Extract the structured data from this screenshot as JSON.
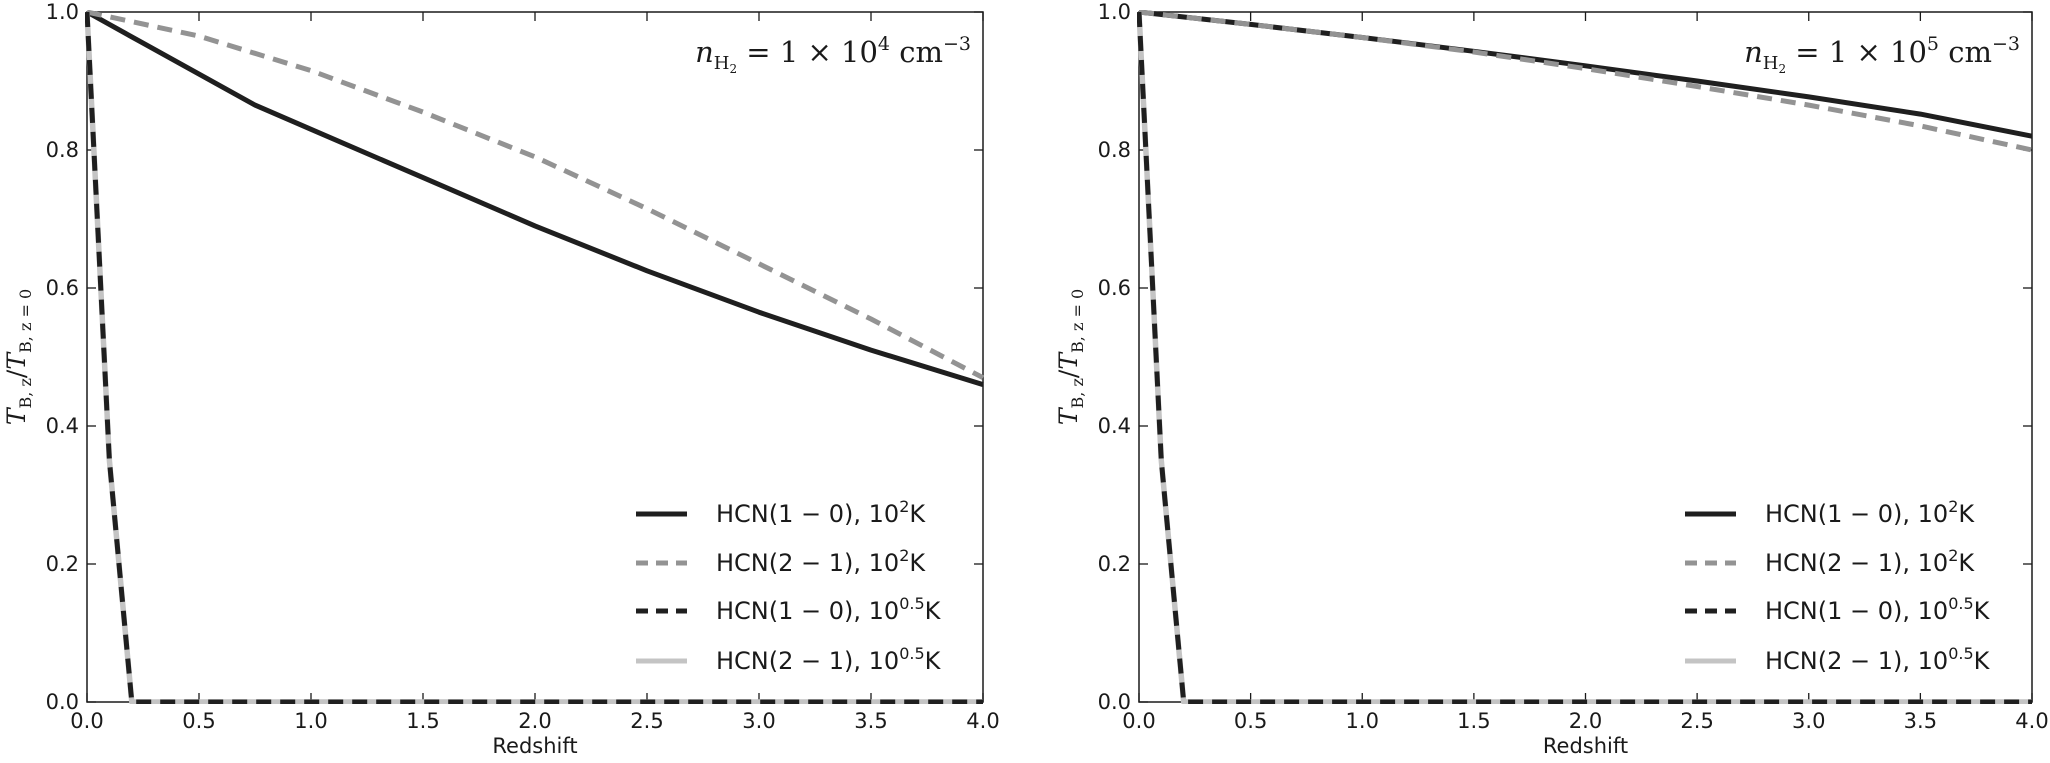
{
  "chart_data": [
    {
      "type": "line",
      "annotation": {
        "prefix": "n",
        "subscript": "H",
        "subscript2": "2",
        "body": " = 1 × 10",
        "exponent": "4",
        "unit": " cm",
        "unit_exponent": "−3"
      },
      "xlabel": "Redshift",
      "ylabel": {
        "t1": "T",
        "s1": "B, z",
        "slash": "/",
        "t2": "T",
        "s2": "B, z = 0"
      },
      "xlim": [
        0,
        4
      ],
      "ylim": [
        0,
        1
      ],
      "xticks": [
        0,
        0.5,
        1.0,
        1.5,
        2.0,
        2.5,
        3.0,
        3.5,
        4.0
      ],
      "xtick_labels": [
        "0.0",
        "0.5",
        "1.0",
        "1.5",
        "2.0",
        "2.5",
        "3.0",
        "3.5",
        "4.0"
      ],
      "yticks": [
        0,
        0.2,
        0.4,
        0.6,
        0.8,
        1.0
      ],
      "ytick_labels": [
        "0.0",
        "0.2",
        "0.4",
        "0.6",
        "0.8",
        "1.0"
      ],
      "legend_position": "lower-right",
      "series": [
        {
          "name": "HCN(1 − 0), 10²K",
          "legend": {
            "base": "HCN(1 − 0), 10",
            "exp": "2",
            "unit": "K"
          },
          "color": "#1f1f1f",
          "style": "solid",
          "x": [
            0,
            0.25,
            0.5,
            0.75,
            1.0,
            1.5,
            2.0,
            2.5,
            3.0,
            3.5,
            4.0
          ],
          "y": [
            1.0,
            0.955,
            0.91,
            0.865,
            0.83,
            0.76,
            0.69,
            0.625,
            0.565,
            0.51,
            0.46
          ]
        },
        {
          "name": "HCN(2 − 1), 10²K",
          "legend": {
            "base": "HCN(2 − 1), 10",
            "exp": "2",
            "unit": "K"
          },
          "color": "#939393",
          "style": "dashed",
          "x": [
            0,
            0.5,
            1.0,
            1.5,
            2.0,
            2.5,
            3.0,
            3.5,
            4.0
          ],
          "y": [
            1.0,
            0.965,
            0.915,
            0.855,
            0.79,
            0.715,
            0.635,
            0.555,
            0.47
          ]
        },
        {
          "name": "HCN(1 − 0), 10^0.5K",
          "legend": {
            "base": "HCN(1 − 0), 10",
            "exp": "0.5",
            "unit": "K"
          },
          "color": "#1f1f1f",
          "style": "dashed",
          "x": [
            0,
            0.1,
            0.2,
            0.5,
            1.0,
            2.0,
            3.0,
            4.0
          ],
          "y": [
            1.0,
            0.35,
            0.0,
            0.0,
            0.0,
            0.0,
            0.0,
            0.0
          ]
        },
        {
          "name": "HCN(2 − 1), 10^0.5K",
          "legend": {
            "base": "HCN(2 − 1), 10",
            "exp": "0.5",
            "unit": "K"
          },
          "color": "#c4c4c4",
          "style": "solid",
          "x": [
            0,
            0.1,
            0.2,
            0.5,
            1.0,
            2.0,
            3.0,
            4.0
          ],
          "y": [
            1.0,
            0.35,
            0.0,
            0.0,
            0.0,
            0.0,
            0.0,
            0.0
          ]
        }
      ]
    },
    {
      "type": "line",
      "annotation": {
        "prefix": "n",
        "subscript": "H",
        "subscript2": "2",
        "body": " = 1 × 10",
        "exponent": "5",
        "unit": " cm",
        "unit_exponent": "−3"
      },
      "xlabel": "Redshift",
      "ylabel": {
        "t1": "T",
        "s1": "B, z",
        "slash": "/",
        "t2": "T",
        "s2": "B, z = 0"
      },
      "xlim": [
        0,
        4
      ],
      "ylim": [
        0,
        1
      ],
      "xticks": [
        0,
        0.5,
        1.0,
        1.5,
        2.0,
        2.5,
        3.0,
        3.5,
        4.0
      ],
      "xtick_labels": [
        "0.0",
        "0.5",
        "1.0",
        "1.5",
        "2.0",
        "2.5",
        "3.0",
        "3.5",
        "4.0"
      ],
      "yticks": [
        0,
        0.2,
        0.4,
        0.6,
        0.8,
        1.0
      ],
      "ytick_labels": [
        "0.0",
        "0.2",
        "0.4",
        "0.6",
        "0.8",
        "1.0"
      ],
      "legend_position": "lower-right",
      "series": [
        {
          "name": "HCN(1 − 0), 10²K",
          "legend": {
            "base": "HCN(1 − 0), 10",
            "exp": "2",
            "unit": "K"
          },
          "color": "#1f1f1f",
          "style": "solid",
          "x": [
            0,
            0.5,
            1.0,
            1.5,
            2.0,
            2.5,
            3.0,
            3.5,
            4.0
          ],
          "y": [
            1.0,
            0.982,
            0.963,
            0.943,
            0.922,
            0.9,
            0.877,
            0.852,
            0.82
          ]
        },
        {
          "name": "HCN(2 − 1), 10²K",
          "legend": {
            "base": "HCN(2 − 1), 10",
            "exp": "2",
            "unit": "K"
          },
          "color": "#939393",
          "style": "dashed",
          "x": [
            0,
            0.5,
            1.0,
            1.5,
            2.0,
            2.5,
            3.0,
            3.5,
            4.0
          ],
          "y": [
            1.0,
            0.982,
            0.963,
            0.942,
            0.918,
            0.892,
            0.865,
            0.835,
            0.8
          ]
        },
        {
          "name": "HCN(1 − 0), 10^0.5K",
          "legend": {
            "base": "HCN(1 − 0), 10",
            "exp": "0.5",
            "unit": "K"
          },
          "color": "#1f1f1f",
          "style": "dashed",
          "x": [
            0,
            0.1,
            0.2,
            0.5,
            1.0,
            2.0,
            3.0,
            4.0
          ],
          "y": [
            1.0,
            0.35,
            0.0,
            0.0,
            0.0,
            0.0,
            0.0,
            0.0
          ]
        },
        {
          "name": "HCN(2 − 1), 10^0.5K",
          "legend": {
            "base": "HCN(2 − 1), 10",
            "exp": "0.5",
            "unit": "K"
          },
          "color": "#c4c4c4",
          "style": "solid",
          "x": [
            0,
            0.1,
            0.2,
            0.5,
            1.0,
            2.0,
            3.0,
            4.0
          ],
          "y": [
            1.0,
            0.35,
            0.0,
            0.0,
            0.0,
            0.0,
            0.0,
            0.0
          ]
        }
      ]
    }
  ]
}
